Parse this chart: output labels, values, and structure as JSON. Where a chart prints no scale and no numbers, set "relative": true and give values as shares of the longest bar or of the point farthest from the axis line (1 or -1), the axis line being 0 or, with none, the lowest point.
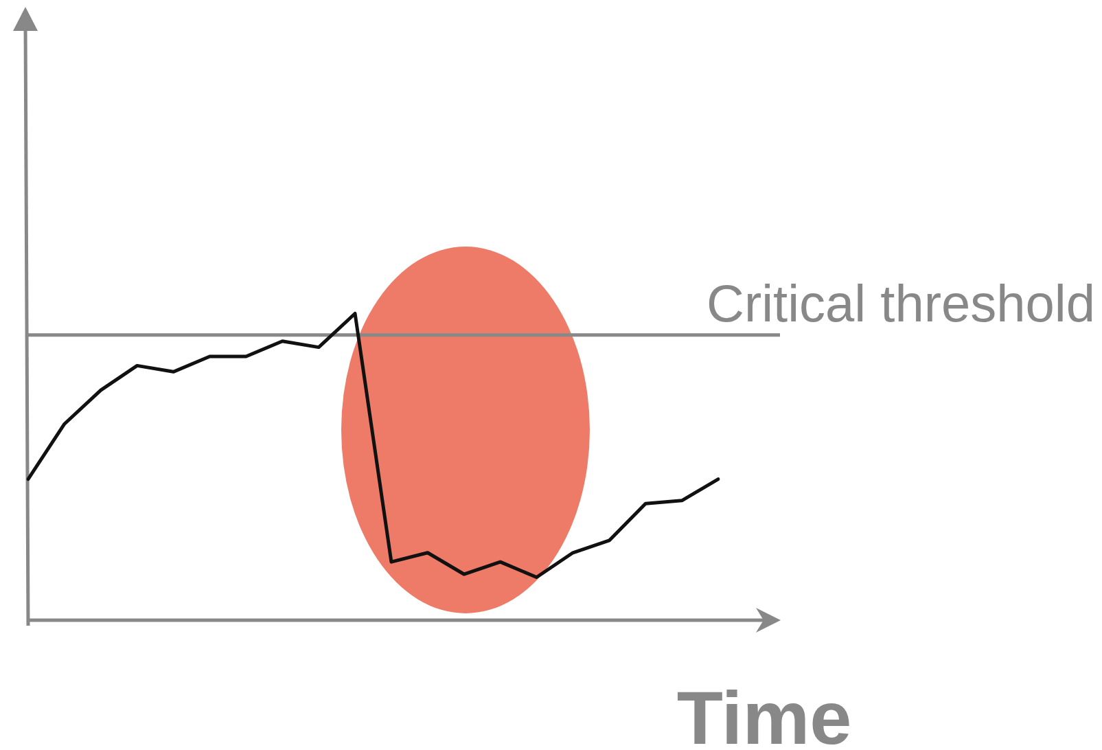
{
  "chart_data": {
    "type": "line",
    "xlabel": "Time",
    "relative": true,
    "color": "#111111",
    "categories": [
      null,
      null,
      null,
      null,
      null,
      null,
      null,
      null,
      null,
      null,
      null,
      null,
      null,
      null,
      null,
      null,
      null,
      null,
      null,
      null
    ],
    "values": [
      0.46,
      0.64,
      0.75,
      0.83,
      0.81,
      0.86,
      0.86,
      0.91,
      0.89,
      1,
      0.19,
      0.22,
      0.15,
      0.19,
      0.14,
      0.22,
      0.26,
      0.38,
      0.39,
      0.46
    ],
    "ref_lines": [
      {
        "axis": "y",
        "value": 0.93,
        "label": "Critical threshold",
        "color": "#888888"
      }
    ]
  }
}
